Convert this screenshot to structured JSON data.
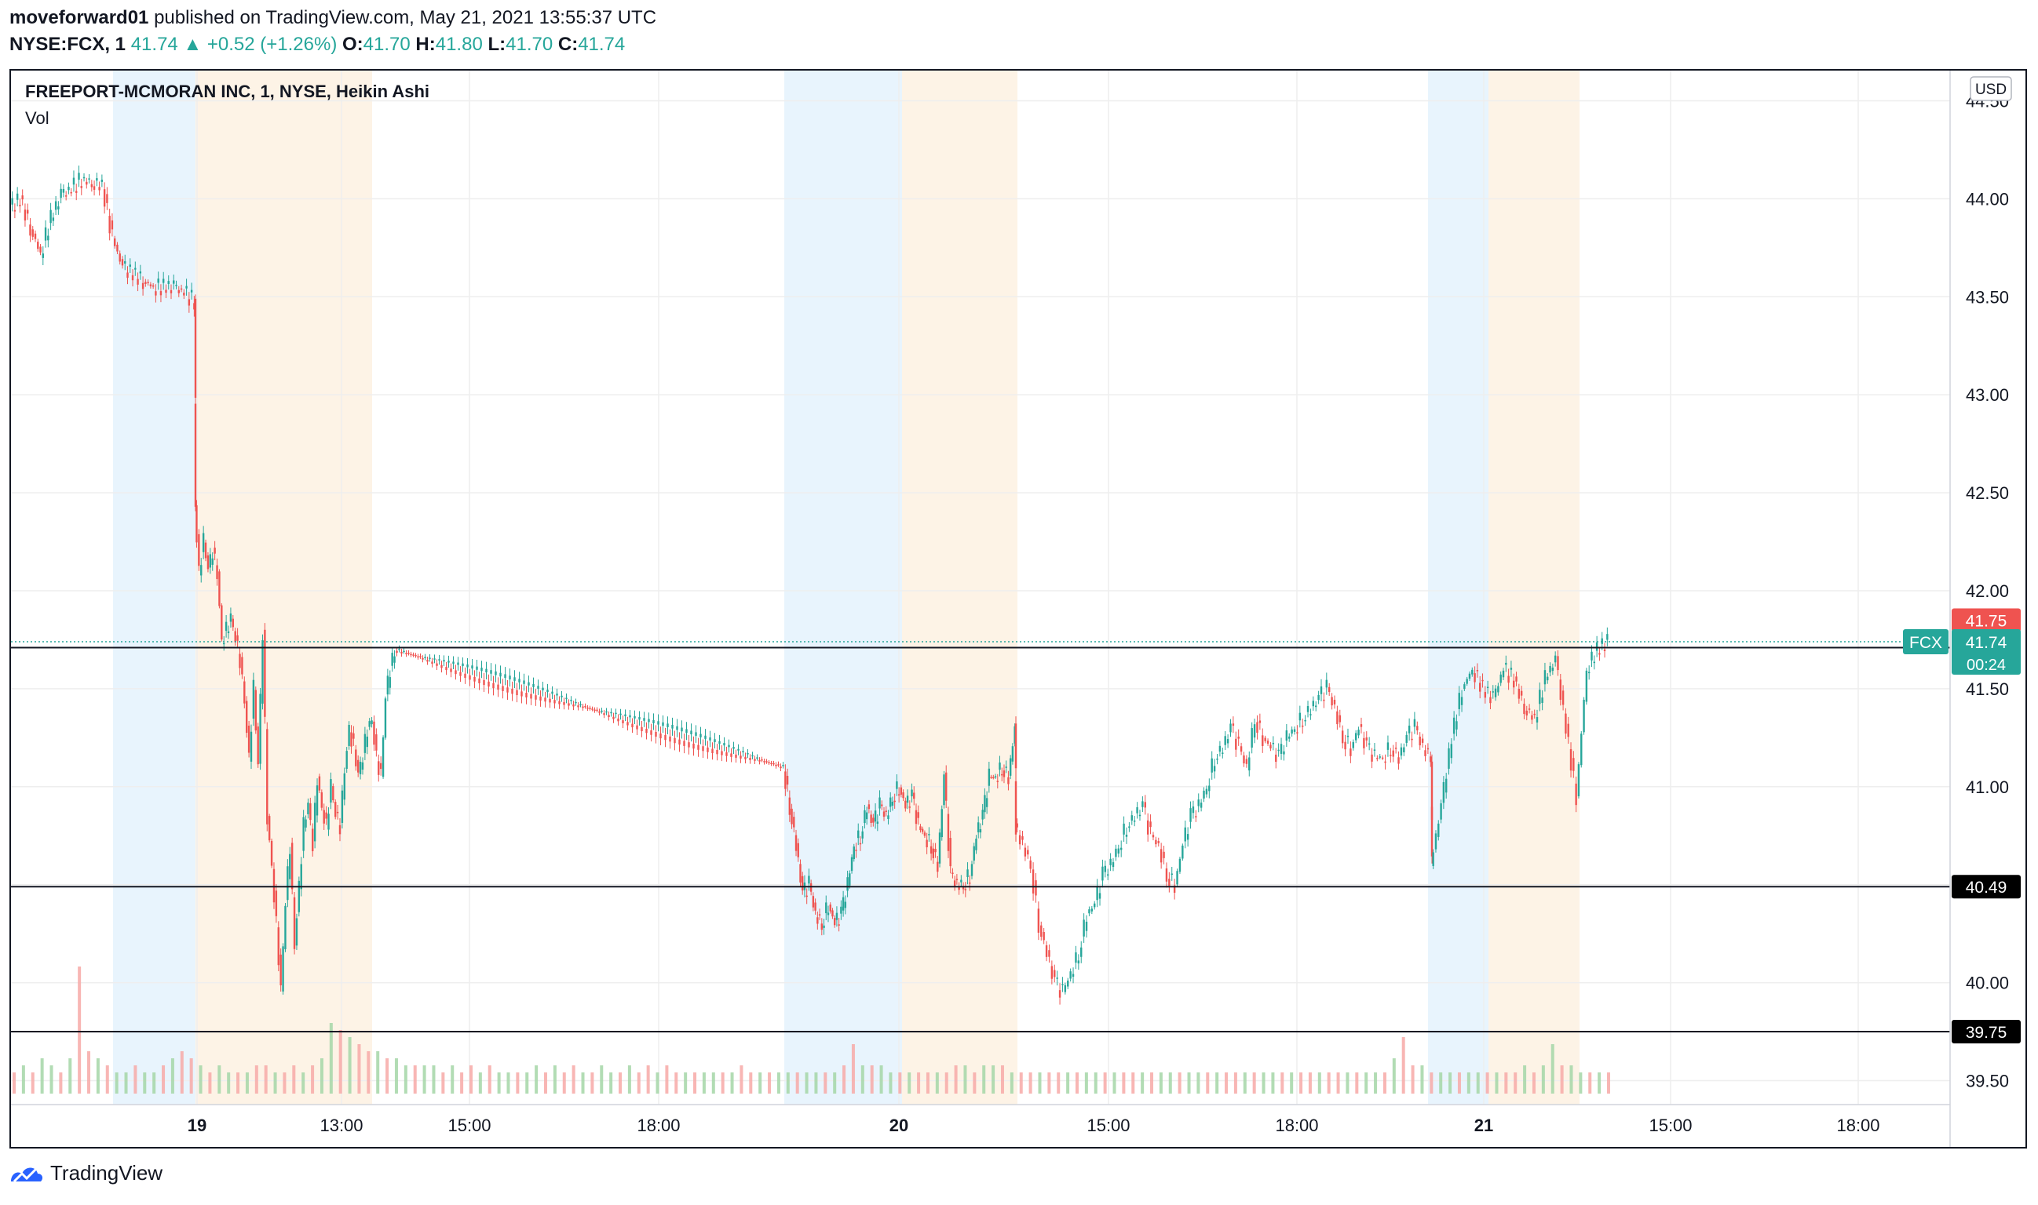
{
  "header": {
    "publisher": "moveforward01",
    "published_text": "published on TradingView.com, May 21, 2021 13:55:37 UTC",
    "symbol": "NYSE:FCX, 1",
    "last": "41.74",
    "change": "+0.52 (+1.26%)",
    "open_label": "O:",
    "open": "41.70",
    "high_label": "H:",
    "high": "41.80",
    "low_label": "L:",
    "low": "41.70",
    "close_label": "C:",
    "close": "41.74"
  },
  "legend": {
    "title": "FREEPORT-MCMORAN INC, 1, NYSE, Heikin Ashi",
    "volume": "Vol"
  },
  "currency": "USD",
  "price_tags": {
    "current_high": "41.75",
    "symbol": "FCX",
    "current": "41.74",
    "countdown": "00:24"
  },
  "footer": {
    "brand": "TradingView"
  },
  "colors": {
    "up": "#26a69a",
    "down": "#ef5350",
    "premarket": "#e8f4fd",
    "postmarket": "#fdf3e6",
    "grid": "#eeeeee",
    "hline": "#131722"
  },
  "chart_data": {
    "type": "candlestick",
    "style": "Heikin Ashi",
    "title": "FREEPORT-MCMORAN INC, 1, NYSE, Heikin Ashi",
    "ylim": [
      39.45,
      44.55
    ],
    "y_ticks": [
      "44.50",
      "44.00",
      "43.50",
      "43.00",
      "42.50",
      "42.00",
      "41.50",
      "41.00",
      "40.50",
      "40.00",
      "39.50"
    ],
    "x_ticks": [
      "19",
      "13:00",
      "15:00",
      "18:00",
      "20",
      "15:00",
      "18:00",
      "21",
      "15:00",
      "18:00"
    ],
    "x_tick_bold": [
      true,
      false,
      false,
      false,
      true,
      false,
      false,
      true,
      false,
      false
    ],
    "horizontal_lines": [
      {
        "value": 41.71,
        "label": "41.71"
      },
      {
        "value": 40.49,
        "label": "40.49"
      },
      {
        "value": 39.75,
        "label": "39.75"
      }
    ],
    "last_price": 41.74,
    "series": {
      "name": "FCX",
      "points": [
        [
          0,
          43.95
        ],
        [
          1,
          44.0
        ],
        [
          2,
          43.85
        ],
        [
          3,
          43.72
        ],
        [
          4,
          43.9
        ],
        [
          5,
          44.02
        ],
        [
          6,
          44.05
        ],
        [
          7,
          44.1
        ],
        [
          8,
          44.08
        ],
        [
          9,
          44.07
        ],
        [
          10,
          43.8
        ],
        [
          11,
          43.65
        ],
        [
          12,
          43.62
        ],
        [
          13,
          43.58
        ],
        [
          14,
          43.55
        ],
        [
          15,
          43.55
        ],
        [
          16,
          43.55
        ],
        [
          17,
          43.52
        ],
        [
          18,
          43.48
        ],
        [
          19,
          42.45
        ],
        [
          20,
          42.1
        ],
        [
          21,
          42.25
        ],
        [
          22,
          42.1
        ],
        [
          23,
          42.2
        ],
        [
          24,
          42.1
        ],
        [
          25,
          41.75
        ],
        [
          26,
          41.8
        ],
        [
          27,
          41.85
        ],
        [
          28,
          41.75
        ],
        [
          29,
          41.65
        ],
        [
          30,
          41.45
        ],
        [
          31,
          41.15
        ],
        [
          32,
          41.5
        ],
        [
          33,
          41.1
        ],
        [
          34,
          41.78
        ],
        [
          35,
          40.85
        ],
        [
          36,
          40.6
        ],
        [
          37,
          40.3
        ],
        [
          38,
          39.95
        ],
        [
          39,
          40.4
        ],
        [
          40,
          40.7
        ],
        [
          41,
          40.2
        ],
        [
          42,
          40.5
        ],
        [
          43,
          40.8
        ],
        [
          44,
          40.9
        ],
        [
          45,
          40.7
        ],
        [
          46,
          41.05
        ],
        [
          47,
          40.9
        ],
        [
          48,
          40.8
        ],
        [
          49,
          41.0
        ],
        [
          50,
          40.85
        ],
        [
          51,
          40.8
        ],
        [
          52,
          41.1
        ],
        [
          53,
          41.3
        ],
        [
          54,
          41.2
        ],
        [
          55,
          41.05
        ],
        [
          56,
          41.15
        ],
        [
          57,
          41.3
        ],
        [
          58,
          41.35
        ],
        [
          59,
          41.15
        ],
        [
          60,
          41.05
        ],
        [
          61,
          41.45
        ],
        [
          62,
          41.6
        ],
        [
          63,
          41.7
        ],
        [
          64,
          41.1
        ],
        [
          65,
          40.9
        ],
        [
          66,
          40.7
        ],
        [
          67,
          40.45
        ],
        [
          68,
          40.5
        ],
        [
          69,
          40.35
        ],
        [
          70,
          40.3
        ],
        [
          71,
          40.4
        ],
        [
          72,
          40.3
        ],
        [
          73,
          40.35
        ],
        [
          74,
          40.5
        ],
        [
          75,
          40.7
        ],
        [
          76,
          40.75
        ],
        [
          77,
          40.9
        ],
        [
          78,
          40.8
        ],
        [
          79,
          40.9
        ],
        [
          80,
          40.85
        ],
        [
          81,
          40.95
        ],
        [
          82,
          41.0
        ],
        [
          83,
          40.9
        ],
        [
          84,
          40.95
        ],
        [
          85,
          40.8
        ],
        [
          86,
          40.75
        ],
        [
          87,
          40.7
        ],
        [
          88,
          40.6
        ],
        [
          89,
          41.05
        ],
        [
          90,
          40.55
        ],
        [
          91,
          40.5
        ],
        [
          92,
          40.5
        ],
        [
          93,
          40.55
        ],
        [
          94,
          40.75
        ],
        [
          95,
          40.85
        ],
        [
          96,
          41.05
        ],
        [
          97,
          41.05
        ],
        [
          98,
          41.1
        ],
        [
          99,
          41.05
        ],
        [
          100,
          41.3
        ],
        [
          101,
          40.8
        ],
        [
          102,
          40.7
        ],
        [
          103,
          40.6
        ],
        [
          104,
          40.3
        ],
        [
          105,
          40.15
        ],
        [
          106,
          40.0
        ],
        [
          107,
          39.95
        ],
        [
          108,
          40.05
        ],
        [
          109,
          40.15
        ],
        [
          110,
          40.35
        ],
        [
          111,
          40.4
        ],
        [
          112,
          40.55
        ],
        [
          113,
          40.6
        ],
        [
          114,
          40.7
        ],
        [
          115,
          40.8
        ],
        [
          116,
          40.85
        ],
        [
          117,
          40.9
        ],
        [
          118,
          40.75
        ],
        [
          119,
          40.7
        ],
        [
          120,
          40.55
        ],
        [
          121,
          40.5
        ],
        [
          122,
          40.7
        ],
        [
          123,
          40.85
        ],
        [
          124,
          40.9
        ],
        [
          125,
          41.0
        ],
        [
          126,
          41.15
        ],
        [
          127,
          41.2
        ],
        [
          128,
          41.3
        ],
        [
          129,
          41.2
        ],
        [
          130,
          41.1
        ],
        [
          131,
          41.35
        ],
        [
          132,
          41.25
        ],
        [
          133,
          41.2
        ],
        [
          134,
          41.15
        ],
        [
          135,
          41.25
        ],
        [
          136,
          41.3
        ],
        [
          137,
          41.35
        ],
        [
          138,
          41.4
        ],
        [
          139,
          41.45
        ],
        [
          140,
          41.5
        ],
        [
          141,
          41.4
        ],
        [
          142,
          41.25
        ],
        [
          143,
          41.2
        ],
        [
          144,
          41.3
        ],
        [
          145,
          41.2
        ],
        [
          146,
          41.15
        ],
        [
          147,
          41.15
        ],
        [
          148,
          41.2
        ],
        [
          149,
          41.15
        ],
        [
          150,
          41.25
        ],
        [
          151,
          41.3
        ],
        [
          152,
          41.2
        ],
        [
          153,
          41.15
        ],
        [
          154,
          40.6
        ],
        [
          155,
          40.9
        ],
        [
          156,
          41.25
        ],
        [
          157,
          41.5
        ],
        [
          158,
          41.6
        ],
        [
          159,
          41.5
        ],
        [
          160,
          41.45
        ],
        [
          161,
          41.6
        ],
        [
          162,
          41.55
        ],
        [
          163,
          41.4
        ],
        [
          164,
          41.35
        ],
        [
          165,
          41.55
        ],
        [
          166,
          41.65
        ],
        [
          167,
          41.3
        ],
        [
          168,
          40.95
        ],
        [
          169,
          41.6
        ],
        [
          170,
          41.7
        ],
        [
          171,
          41.74
        ]
      ],
      "x_map": {
        "x_min": 0,
        "x_max": 171,
        "note_sessions": [
          "May 19",
          "May 20",
          "May 21"
        ]
      }
    },
    "volume": {
      "name": "Vol",
      "values": [
        3,
        4,
        3,
        5,
        4,
        3,
        5,
        18,
        6,
        5,
        4,
        3,
        3,
        4,
        3,
        3,
        4,
        5,
        6,
        5,
        4,
        3,
        4,
        3,
        3,
        3,
        4,
        4,
        3,
        3,
        4,
        3,
        4,
        5,
        10,
        9,
        8,
        7,
        6,
        6,
        5,
        5,
        4,
        4,
        4,
        4,
        3,
        4,
        3,
        4,
        3,
        4,
        3,
        3,
        3,
        3,
        4,
        3,
        4,
        3,
        4,
        3,
        3,
        4,
        3,
        3,
        4,
        3,
        4,
        3,
        4,
        3,
        3,
        3,
        3,
        3,
        3,
        3,
        4,
        3,
        3,
        3,
        3,
        3,
        3,
        3,
        3,
        3,
        3,
        4,
        7,
        4,
        4,
        4,
        3,
        3,
        3,
        3,
        3,
        3,
        3,
        4,
        4,
        3,
        4,
        4,
        4,
        3,
        3,
        3,
        3,
        3,
        3,
        3,
        3,
        3,
        3,
        3,
        3,
        3,
        3,
        3,
        3,
        3,
        3,
        3,
        3,
        3,
        3,
        3,
        3,
        3,
        3,
        3,
        3,
        3,
        3,
        3,
        3,
        3,
        3,
        3,
        3,
        3,
        3,
        3,
        3,
        3,
        5,
        8,
        4,
        4,
        3,
        3,
        3,
        3,
        3,
        3,
        3,
        3,
        3,
        3,
        4,
        3,
        4,
        7,
        4,
        4,
        3,
        3,
        3,
        3
      ]
    }
  }
}
